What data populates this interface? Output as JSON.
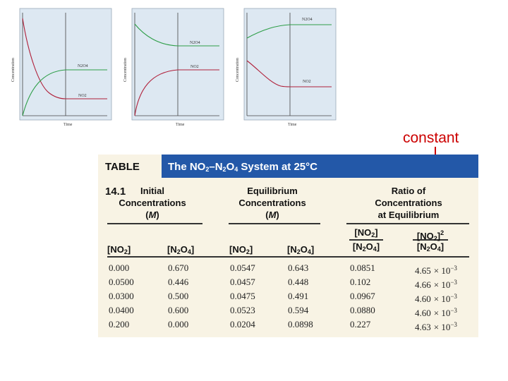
{
  "graphs": [
    {
      "ylabel": "Concentration",
      "xlabel": "Time",
      "labels": [
        "N2O4",
        "NO2"
      ]
    },
    {
      "ylabel": "Concentration",
      "xlabel": "Time",
      "labels": [
        "N2O4",
        "NO2"
      ]
    },
    {
      "ylabel": "Concentration",
      "xlabel": "Time",
      "labels": [
        "N2O4",
        "NO2"
      ]
    }
  ],
  "colors": {
    "graph_bg": "#dde8f2",
    "green_curve": "#2e9e48",
    "red_curve": "#b0203a",
    "table_header": "#2358a8",
    "table_bg": "#f8f3e4",
    "annotation": "#cc0000"
  },
  "annotation": {
    "text": "constant"
  },
  "table": {
    "number": "TABLE 14.1",
    "title_pre": "The NO",
    "title_mid": "–N",
    "title_o": "O",
    "title_post": " System at 25°C",
    "sub2": "2",
    "sub4": "4",
    "group_initial": [
      "Initial",
      "Concentrations"
    ],
    "group_equilibrium": [
      "Equilibrium",
      "Concentrations"
    ],
    "unit_open": "(",
    "unit_m": "M",
    "unit_close": ")",
    "group_ratio": [
      "Ratio of",
      "Concentrations",
      "at Equilibrium"
    ],
    "col_no2": "[NO",
    "col_n2o4_a": "[N",
    "col_n2o4_b": "O",
    "close_bracket": "]",
    "squared": "2",
    "times": "× 10",
    "exponent": "−3",
    "rows": [
      {
        "init_no2": "0.000",
        "init_n2o4": "0.670",
        "eq_no2": "0.0547",
        "eq_n2o4": "0.643",
        "ratio1": "0.0851",
        "ratio2": "4.65"
      },
      {
        "init_no2": "0.0500",
        "init_n2o4": "0.446",
        "eq_no2": "0.0457",
        "eq_n2o4": "0.448",
        "ratio1": "0.102",
        "ratio2": "4.66"
      },
      {
        "init_no2": "0.0300",
        "init_n2o4": "0.500",
        "eq_no2": "0.0475",
        "eq_n2o4": "0.491",
        "ratio1": "0.0967",
        "ratio2": "4.60"
      },
      {
        "init_no2": "0.0400",
        "init_n2o4": "0.600",
        "eq_no2": "0.0523",
        "eq_n2o4": "0.594",
        "ratio1": "0.0880",
        "ratio2": "4.60"
      },
      {
        "init_no2": "0.200",
        "init_n2o4": "0.000",
        "eq_no2": "0.0204",
        "eq_n2o4": "0.0898",
        "ratio1": "0.227",
        "ratio2": "4.63"
      }
    ]
  }
}
